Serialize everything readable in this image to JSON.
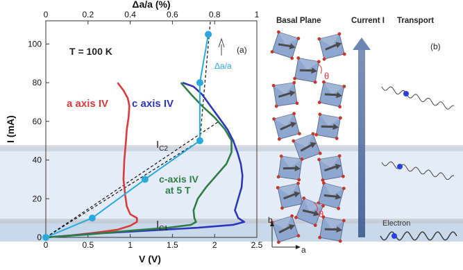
{
  "chart_data": {
    "type": "line",
    "panel_label": "(a)",
    "annotation_temperature": "T = 100 K",
    "x_axis": {
      "label": "V (V)",
      "lim": [
        0,
        2.5
      ],
      "ticks": [
        "0",
        "0.5",
        "1",
        "1.5",
        "2",
        "2.5"
      ]
    },
    "x_top_axis": {
      "label": "Δa/a (%)",
      "lim": [
        0,
        1
      ],
      "ticks": [
        "0",
        "0.2",
        "0.4",
        "0.6",
        "0.8",
        "1"
      ]
    },
    "y_axis": {
      "label": "I (mA)",
      "lim": [
        0,
        112
      ],
      "ticks": [
        "0",
        "20",
        "40",
        "60",
        "80",
        "100"
      ]
    },
    "thresholds": [
      {
        "name": "IC1",
        "label_main": "I",
        "label_sub": "C1",
        "value": 9
      },
      {
        "name": "IC2",
        "label_main": "I",
        "label_sub": "C2",
        "value": 48
      }
    ],
    "series": [
      {
        "name": "a axis IV",
        "color": "#d93a3a",
        "points": [
          [
            0,
            0
          ],
          [
            0.3,
            1
          ],
          [
            0.6,
            2.5
          ],
          [
            0.85,
            4
          ],
          [
            1.0,
            6
          ],
          [
            1.08,
            8
          ],
          [
            1.08,
            10
          ],
          [
            1.0,
            12
          ],
          [
            0.96,
            16
          ],
          [
            0.94,
            22
          ],
          [
            0.92,
            30
          ],
          [
            0.93,
            40
          ],
          [
            0.95,
            50
          ],
          [
            0.96,
            56
          ],
          [
            0.98,
            62
          ],
          [
            0.99,
            68
          ],
          [
            0.97,
            72
          ],
          [
            0.92,
            76
          ],
          [
            0.85,
            80
          ]
        ]
      },
      {
        "name": "c axis IV",
        "color": "#2b37b8",
        "points": [
          [
            0,
            0
          ],
          [
            0.6,
            2
          ],
          [
            1.2,
            3.5
          ],
          [
            1.8,
            5
          ],
          [
            2.22,
            6.5
          ],
          [
            2.35,
            8
          ],
          [
            2.28,
            10
          ],
          [
            2.24,
            14
          ],
          [
            2.28,
            20
          ],
          [
            2.32,
            26
          ],
          [
            2.33,
            32
          ],
          [
            2.31,
            38
          ],
          [
            2.27,
            44
          ],
          [
            2.22,
            50
          ],
          [
            2.15,
            56
          ],
          [
            2.05,
            62
          ],
          [
            1.95,
            68
          ],
          [
            1.85,
            74
          ],
          [
            1.75,
            78
          ],
          [
            1.62,
            80
          ]
        ]
      },
      {
        "name": "c-axis IV at 5 T",
        "color": "#2e7d45",
        "points": [
          [
            0,
            0
          ],
          [
            0.5,
            1.5
          ],
          [
            1.0,
            3.5
          ],
          [
            1.45,
            5
          ],
          [
            1.72,
            6.5
          ],
          [
            1.78,
            8
          ],
          [
            1.76,
            10
          ],
          [
            1.75,
            14
          ],
          [
            1.8,
            20
          ],
          [
            1.9,
            26
          ],
          [
            2.02,
            32
          ],
          [
            2.14,
            38
          ],
          [
            2.2,
            44
          ],
          [
            2.2,
            50
          ],
          [
            2.12,
            56
          ],
          [
            2.0,
            62
          ],
          [
            1.85,
            68
          ],
          [
            1.72,
            74
          ],
          [
            1.6,
            80
          ]
        ]
      },
      {
        "name": "Δa/a",
        "color": "#29a9dc",
        "axis": "top",
        "points": [
          [
            0,
            0
          ],
          [
            0.22,
            10
          ],
          [
            0.47,
            30
          ],
          [
            0.73,
            50
          ],
          [
            0.73,
            80
          ],
          [
            0.77,
            105
          ]
        ]
      }
    ],
    "fits": [
      {
        "points": [
          [
            0,
            0
          ],
          [
            0.82,
            60
          ]
        ]
      },
      {
        "points": [
          [
            0,
            0
          ],
          [
            0.73,
            50
          ]
        ]
      },
      {
        "points": [
          [
            0.73,
            50
          ],
          [
            0.78,
            112
          ]
        ]
      }
    ],
    "curve_labels": {
      "a_axis": "a axis IV",
      "c_axis": "c axis IV",
      "c_axis_5t_line1": "c-axis IV",
      "c_axis_5t_line2": "at 5 T",
      "delta": "Δa/a"
    }
  },
  "schematic": {
    "panel_label": "(b)",
    "headers": [
      "Basal Plane",
      "Current I",
      "Transport"
    ],
    "electron_label": "Electron",
    "angle_symbol": "θ",
    "axis_b": "b",
    "axis_a": "a",
    "colors": {
      "octahedron_face": "#8fa7cf",
      "octahedron_edge": "#5b6f96",
      "atom": "#c0392b",
      "arrow": "#4a4a4a",
      "electron": "#2c3edb",
      "band": "#dbe6f3"
    }
  }
}
